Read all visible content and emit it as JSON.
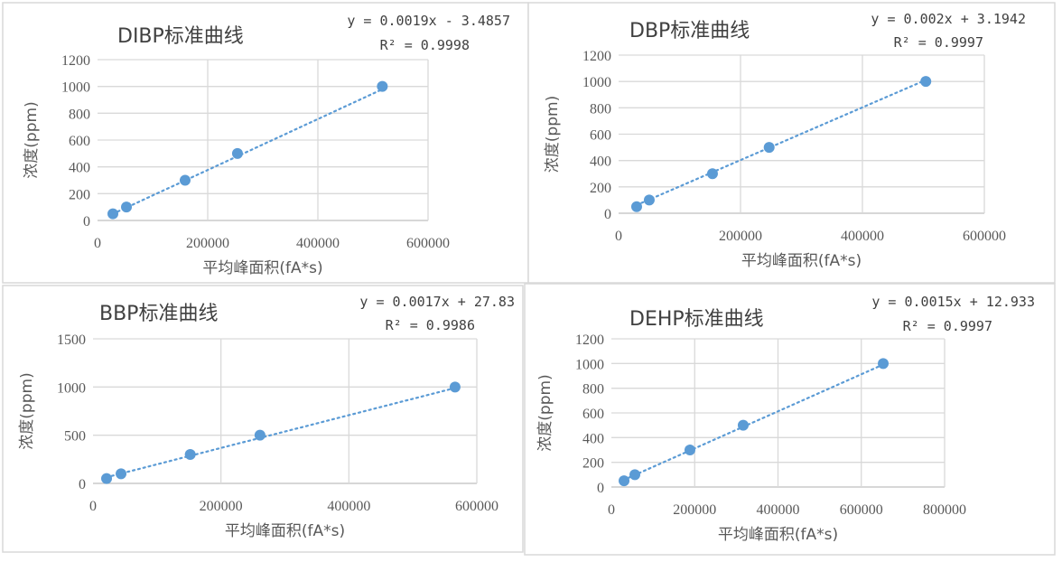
{
  "chart_data": [
    {
      "type": "scatter",
      "title": "DIBP标准曲线",
      "xlabel": "平均峰面积(fA*s)",
      "ylabel": "浓度(ppm)",
      "xlim": [
        0,
        600000
      ],
      "ylim": [
        0,
        1200
      ],
      "xticks": [
        "0",
        "200000",
        "400000",
        "600000"
      ],
      "yticks": [
        "0",
        "200",
        "400",
        "600",
        "800",
        "1000",
        "1200"
      ],
      "grid": true,
      "x": [
        27900,
        52500,
        159000,
        254000,
        517000
      ],
      "y": [
        50,
        100,
        300,
        500,
        1000
      ],
      "trendline": {
        "equation": "y = 0.0019x - 3.4857",
        "r2": "R² = 0.9998",
        "slope": 0.0019,
        "intercept": -3.4857
      },
      "color": "#5b9bd5"
    },
    {
      "type": "scatter",
      "title": "DBP标准曲线",
      "xlabel": "平均峰面积(fA*s)",
      "ylabel": "浓度(ppm)",
      "xlim": [
        0,
        600000
      ],
      "ylim": [
        0,
        1200
      ],
      "xticks": [
        "0",
        "200000",
        "400000",
        "600000"
      ],
      "yticks": [
        "0",
        "200",
        "400",
        "600",
        "800",
        "1000",
        "1200"
      ],
      "grid": true,
      "x": [
        29600,
        50300,
        154000,
        247000,
        504000
      ],
      "y": [
        50,
        100,
        300,
        500,
        1000
      ],
      "trendline": {
        "equation": "y = 0.002x + 3.1942",
        "r2": "R² = 0.9997",
        "slope": 0.002,
        "intercept": 3.1942
      },
      "color": "#5b9bd5"
    },
    {
      "type": "scatter",
      "title": "BBP标准曲线",
      "xlabel": "平均峰面积(fA*s)",
      "ylabel": "浓度(ppm)",
      "xlim": [
        0,
        600000
      ],
      "ylim": [
        0,
        1500
      ],
      "xticks": [
        "0",
        "200000",
        "400000",
        "600000"
      ],
      "yticks": [
        "0",
        "500",
        "1000",
        "1500"
      ],
      "grid": true,
      "x": [
        21200,
        43800,
        152000,
        261000,
        566000
      ],
      "y": [
        50,
        100,
        300,
        500,
        1000
      ],
      "trendline": {
        "equation": "y = 0.0017x + 27.83",
        "r2": "R² = 0.9986",
        "slope": 0.0017,
        "intercept": 27.83
      },
      "color": "#5b9bd5"
    },
    {
      "type": "scatter",
      "title": "DEHP标准曲线",
      "xlabel": "平均峰面积(fA*s)",
      "ylabel": "浓度(ppm)",
      "xlim": [
        0,
        800000
      ],
      "ylim": [
        0,
        1200
      ],
      "xticks": [
        "0",
        "200000",
        "400000",
        "600000",
        "800000"
      ],
      "yticks": [
        "0",
        "200",
        "400",
        "600",
        "800",
        "1000",
        "1200"
      ],
      "grid": true,
      "x": [
        30400,
        56400,
        188600,
        316500,
        652600
      ],
      "y": [
        50,
        100,
        300,
        500,
        1000
      ],
      "trendline": {
        "equation": "y = 0.0015x + 12.933",
        "r2": "R² = 0.9997",
        "slope": 0.0015,
        "intercept": 12.933
      },
      "color": "#5b9bd5"
    }
  ]
}
